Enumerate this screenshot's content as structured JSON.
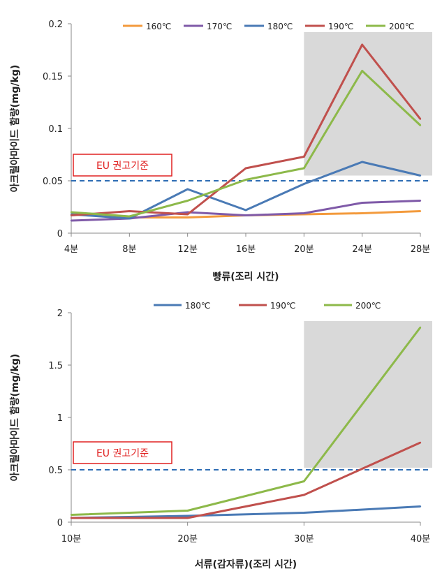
{
  "chart_data": [
    {
      "type": "line",
      "categories": [
        "4분",
        "8분",
        "12분",
        "16분",
        "20분",
        "24분",
        "28분"
      ],
      "xlabel": "빵류(조리 시간)",
      "ylabel": "아크릴아마이드 함량(mg/kg)",
      "ylim": [
        0,
        0.2
      ],
      "yticks": [
        "0",
        "0.05",
        "0.1",
        "0.15",
        "0.2"
      ],
      "ytick_values": [
        0,
        0.05,
        0.1,
        0.15,
        0.2
      ],
      "legend_position": "top",
      "series": [
        {
          "name": "160℃",
          "color": "#f39a3c",
          "values": [
            0.018,
            0.015,
            0.015,
            0.017,
            0.018,
            0.019,
            0.021
          ]
        },
        {
          "name": "170℃",
          "color": "#7f5aa8",
          "values": [
            0.012,
            0.014,
            0.02,
            0.017,
            0.019,
            0.029,
            0.031
          ]
        },
        {
          "name": "180℃",
          "color": "#4a7ab5",
          "values": [
            0.018,
            0.014,
            0.042,
            0.022,
            0.047,
            0.068,
            0.055
          ]
        },
        {
          "name": "190℃",
          "color": "#c0504d",
          "values": [
            0.017,
            0.021,
            0.018,
            0.062,
            0.073,
            0.18,
            0.109
          ]
        },
        {
          "name": "200℃",
          "color": "#8db94a",
          "values": [
            0.02,
            0.016,
            0.031,
            0.051,
            0.062,
            0.155,
            0.103
          ]
        }
      ],
      "reference": {
        "value": 0.05,
        "label": "EU 권고기준",
        "color": "#2e6db4"
      },
      "highlight": {
        "from_category": "20분",
        "to_category": "28분",
        "y_from": 0.055,
        "y_to": 0.192,
        "color": "#d9d9d9"
      }
    },
    {
      "type": "line",
      "categories": [
        "10분",
        "20분",
        "30분",
        "40분"
      ],
      "xlabel": "서류(감자류)(조리 시간)",
      "ylabel": "아크릴아마이드 함량(mg/kg)",
      "ylim": [
        0,
        2
      ],
      "yticks": [
        "0",
        "0.5",
        "1",
        "1.5",
        "2"
      ],
      "ytick_values": [
        0,
        0.5,
        1,
        1.5,
        2
      ],
      "legend_position": "top",
      "series": [
        {
          "name": "180℃",
          "color": "#4a7ab5",
          "values": [
            0.04,
            0.06,
            0.09,
            0.15
          ]
        },
        {
          "name": "190℃",
          "color": "#c0504d",
          "values": [
            0.04,
            0.04,
            0.26,
            0.76
          ]
        },
        {
          "name": "200℃",
          "color": "#8db94a",
          "values": [
            0.07,
            0.11,
            0.39,
            1.86
          ]
        }
      ],
      "reference": {
        "value": 0.5,
        "label": "EU 권고기준",
        "color": "#2e6db4"
      },
      "highlight": {
        "from_category": "30분",
        "to_category": "40분",
        "y_from": 0.52,
        "y_to": 1.92,
        "color": "#d9d9d9"
      }
    }
  ]
}
